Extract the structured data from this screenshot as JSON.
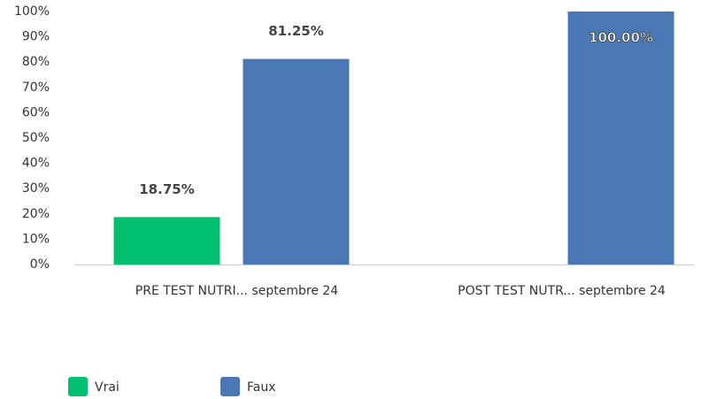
{
  "chart_data": {
    "type": "bar",
    "categories": [
      "PRE TEST NUTRI... septembre 24",
      "POST TEST NUTR... septembre 24"
    ],
    "series": [
      {
        "name": "Vrai",
        "color": "#00bf6f",
        "values": [
          18.75,
          null
        ],
        "value_labels": [
          "18.75%",
          null
        ]
      },
      {
        "name": "Faux",
        "color": "#4a78b4",
        "values": [
          81.25,
          100
        ],
        "value_labels": [
          "81.25%",
          "100.00%"
        ]
      }
    ],
    "ylim": [
      0,
      100
    ],
    "yticks": [
      {
        "value": 0,
        "label": "0%"
      },
      {
        "value": 10,
        "label": "10%"
      },
      {
        "value": 20,
        "label": "20%"
      },
      {
        "value": 30,
        "label": "30%"
      },
      {
        "value": 40,
        "label": "40%"
      },
      {
        "value": 50,
        "label": "50%"
      },
      {
        "value": 60,
        "label": "60%"
      },
      {
        "value": 70,
        "label": "70%"
      },
      {
        "value": 80,
        "label": "80%"
      },
      {
        "value": 90,
        "label": "90%"
      },
      {
        "value": 100,
        "label": "100%"
      }
    ],
    "grid": false,
    "legend": "bottom"
  }
}
